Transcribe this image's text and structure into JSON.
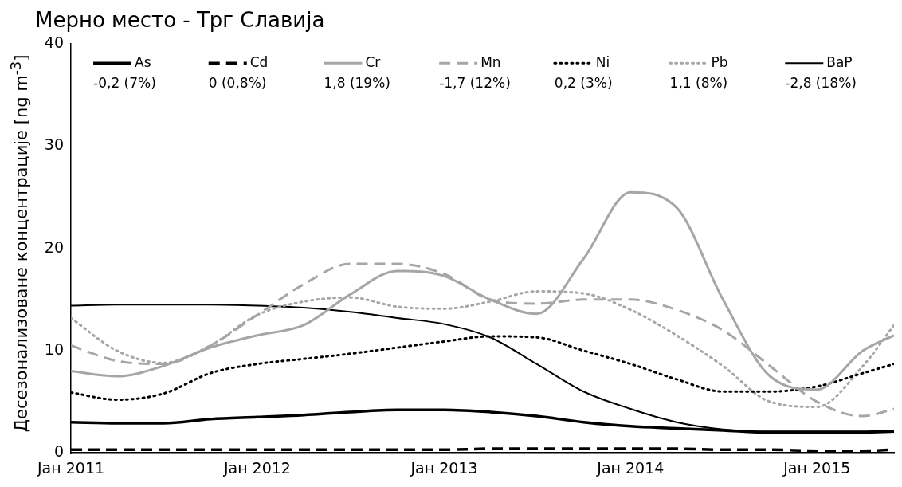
{
  "chart_data": {
    "type": "line",
    "title": "Мерно место - Трг Славија",
    "ylabel": "Десезонализоване концентрације [ng m$^{-3}$]",
    "x": [
      "2011-01",
      "2011-04",
      "2011-07",
      "2011-10",
      "2012-01",
      "2012-04",
      "2012-07",
      "2012-10",
      "2013-01",
      "2013-04",
      "2013-07",
      "2013-10",
      "2014-01",
      "2014-04",
      "2014-07",
      "2014-10",
      "2015-01",
      "2015-04",
      "2015-06"
    ],
    "xlim": [
      "2011-01",
      "2015-06"
    ],
    "xticks": [
      {
        "value": "2011-01",
        "label": "Јан 2011"
      },
      {
        "value": "2012-01",
        "label": "Јан 2012"
      },
      {
        "value": "2013-01",
        "label": "Јан 2013"
      },
      {
        "value": "2014-01",
        "label": "Јан 2014"
      },
      {
        "value": "2015-01",
        "label": "Јан 2015"
      }
    ],
    "ylim": [
      0,
      40
    ],
    "yticks": [
      0,
      10,
      20,
      30,
      40
    ],
    "grid": false,
    "legend": "top",
    "marker": "none",
    "series": [
      {
        "name": "As",
        "color": "#000000",
        "line_style": "solid",
        "values": [
          3.0,
          2.9,
          2.9,
          3.3,
          3.5,
          3.7,
          4.0,
          4.2,
          4.2,
          4.0,
          3.6,
          3.0,
          2.6,
          2.4,
          2.2,
          2.0,
          2.0,
          2.0,
          2.1
        ]
      },
      {
        "name": "Cd",
        "color": "#000000",
        "line_style": "dashed",
        "values": [
          0.3,
          0.3,
          0.3,
          0.3,
          0.3,
          0.3,
          0.3,
          0.3,
          0.3,
          0.4,
          0.4,
          0.4,
          0.4,
          0.4,
          0.3,
          0.3,
          0.2,
          0.2,
          0.3
        ]
      },
      {
        "name": "Cr",
        "color": "#a6a6a6",
        "line_style": "solid",
        "values": [
          8.0,
          7.5,
          8.5,
          10.3,
          11.5,
          12.5,
          15.5,
          17.8,
          17.3,
          15.0,
          13.6,
          19.0,
          25.5,
          24.0,
          15.0,
          7.5,
          6.2,
          10.0,
          11.5
        ]
      },
      {
        "name": "Mn",
        "color": "#a6a6a6",
        "line_style": "dashed",
        "values": [
          10.5,
          9.0,
          8.7,
          10.5,
          13.5,
          16.5,
          18.5,
          18.5,
          17.5,
          15.0,
          14.6,
          15.0,
          15.0,
          14.0,
          12.0,
          8.5,
          5.0,
          3.6,
          4.3
        ]
      },
      {
        "name": "Ni",
        "color": "#000000",
        "line_style": "dotted",
        "values": [
          5.9,
          5.2,
          5.8,
          7.8,
          8.7,
          9.2,
          9.7,
          10.3,
          10.9,
          11.4,
          11.3,
          10.0,
          8.7,
          7.2,
          6.0,
          6.0,
          6.5,
          7.8,
          8.7
        ]
      },
      {
        "name": "Pb",
        "color": "#a6a6a6",
        "line_style": "dotted",
        "values": [
          13.2,
          10.0,
          8.8,
          10.5,
          13.5,
          14.8,
          15.2,
          14.3,
          14.1,
          14.8,
          15.8,
          15.6,
          14.0,
          11.5,
          8.5,
          5.0,
          4.5,
          8.5,
          12.5
        ]
      },
      {
        "name": "BaP",
        "color": "#000000",
        "line_style": "solid",
        "values": [
          14.4,
          14.5,
          14.5,
          14.5,
          14.4,
          14.2,
          13.8,
          13.2,
          12.6,
          11.3,
          8.7,
          6.0,
          4.3,
          3.0,
          2.3,
          2.1,
          2.1,
          2.1,
          2.2
        ]
      }
    ],
    "annotations": [
      "-0,2 (7%)",
      "0 (0,8%)",
      "1,8 (19%)",
      "-1,7 (12%)",
      "0,2 (3%)",
      "1,1 (8%)",
      "-2,8 (18%)"
    ]
  }
}
